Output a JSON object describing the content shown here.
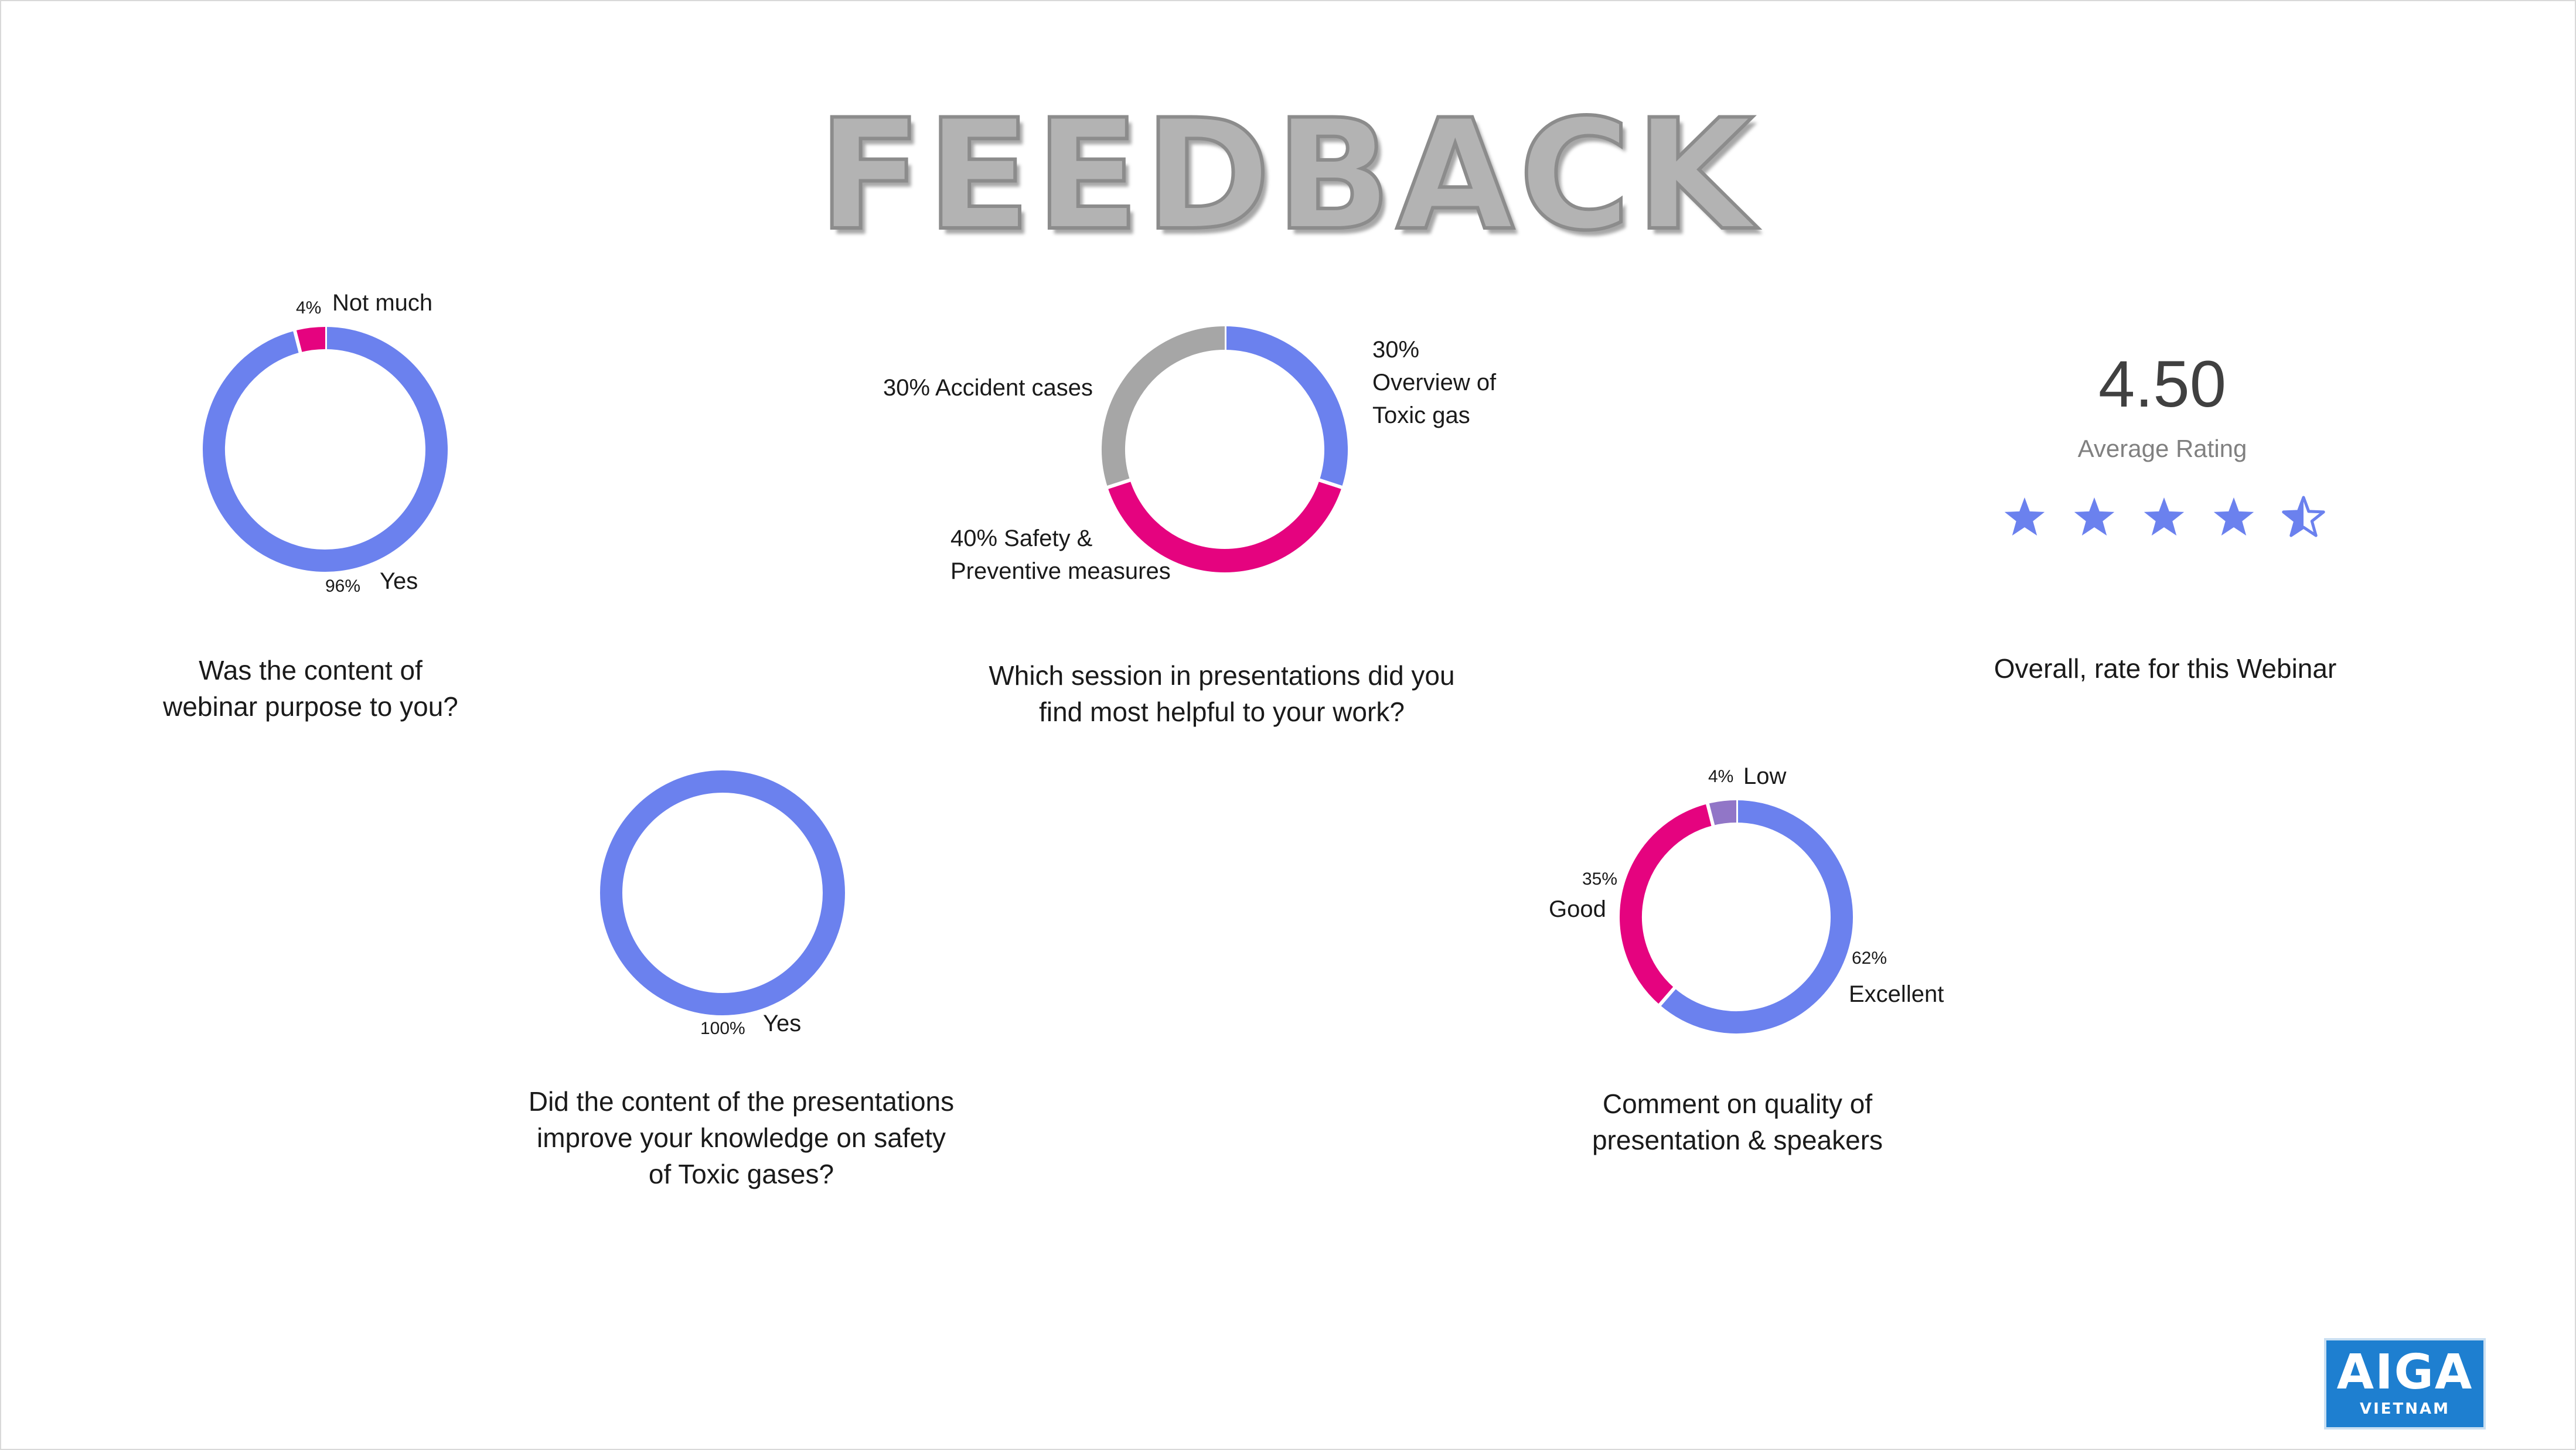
{
  "title": "FEEDBACK",
  "colors": {
    "blue": "#6b81ee",
    "pink": "#e5037f",
    "gray": "#a6a6a6",
    "purple": "#9176c7"
  },
  "chart_data": [
    {
      "type": "pie",
      "title": "Was the content of webinar purpose to you?",
      "slices": [
        {
          "label": "Yes",
          "value": 96,
          "pct_label": "96%",
          "color": "#6b81ee"
        },
        {
          "label": "Not much",
          "value": 4,
          "pct_label": "4%",
          "color": "#e5037f"
        }
      ]
    },
    {
      "type": "pie",
      "title": "Which session in presentations did you find most helpful to your work?",
      "slices": [
        {
          "label": "Overview of Toxic gas",
          "value": 30,
          "pct_label": "30%",
          "color": "#6b81ee"
        },
        {
          "label": "Safety & Preventive measures",
          "value": 40,
          "pct_label": "40%",
          "color": "#e5037f"
        },
        {
          "label": "Accident cases",
          "value": 30,
          "pct_label": "30%",
          "color": "#a6a6a6"
        }
      ]
    },
    {
      "type": "pie",
      "title": "Did the content of the presentations improve your knowledge on safety of Toxic gases?",
      "slices": [
        {
          "label": "Yes",
          "value": 100,
          "pct_label": "100%",
          "color": "#6b81ee"
        }
      ]
    },
    {
      "type": "pie",
      "title": "Comment on quality of presentation & speakers",
      "slices": [
        {
          "label": "Excellent",
          "value": 62,
          "pct_label": "62%",
          "color": "#6b81ee"
        },
        {
          "label": "Good",
          "value": 35,
          "pct_label": "35%",
          "color": "#e5037f"
        },
        {
          "label": "Low",
          "value": 4,
          "pct_label": "4%",
          "color": "#9176c7"
        }
      ]
    }
  ],
  "captions": {
    "q1": [
      "Was the content of",
      "webinar purpose to you?"
    ],
    "q2": [
      "Which session in presentations did you",
      "find most helpful to your work?"
    ],
    "q3": [
      "Did the content of the presentations",
      "improve your knowledge on safety",
      "of Toxic gases?"
    ],
    "q4": [
      "Comment on quality of",
      "presentation & speakers"
    ],
    "rating": "Overall, rate for this Webinar"
  },
  "rating": {
    "value_text": "4.50",
    "value": 4.5,
    "max": 5,
    "label": "Average Rating",
    "star_color": "#6b81ee",
    "icon": "star-icon"
  },
  "logo": {
    "name": "AIGA",
    "sub": "VIETNAM"
  }
}
